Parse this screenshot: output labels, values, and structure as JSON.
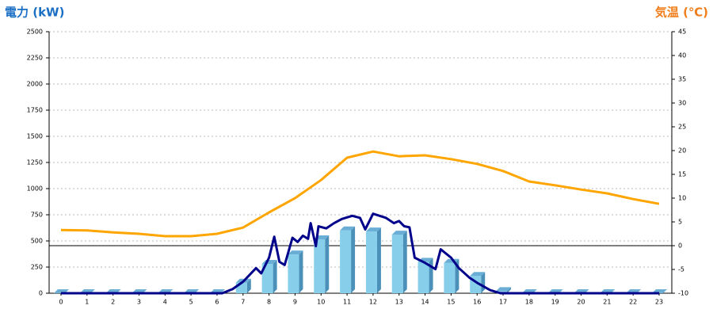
{
  "chart_data": {
    "type": "combo",
    "y_label": "電力 (kW)",
    "y2_label": "気温 (℃)",
    "categories": [
      "0",
      "1",
      "2",
      "3",
      "4",
      "5",
      "6",
      "7",
      "8",
      "9",
      "10",
      "11",
      "12",
      "13",
      "14",
      "15",
      "16",
      "17",
      "18",
      "19",
      "20",
      "21",
      "22",
      "23"
    ],
    "series": [
      {
        "type": "bar",
        "color": "#87ceeb",
        "values": [
          0,
          0,
          0,
          0,
          0,
          0,
          0,
          100,
          280,
          370,
          515,
          600,
          590,
          560,
          300,
          290,
          165,
          20,
          0,
          0,
          0,
          0,
          0,
          0
        ]
      },
      {
        "type": "line",
        "color": "#00008b",
        "x": [
          0,
          6.2,
          6.6,
          7,
          7.5,
          7.7,
          8,
          8.2,
          8.4,
          8.6,
          8.9,
          9.1,
          9.3,
          9.5,
          9.6,
          9.8,
          9.9,
          10.2,
          10.5,
          10.8,
          11.2,
          11.5,
          11.7,
          12,
          12.5,
          12.8,
          13,
          13.2,
          13.4,
          13.6,
          14,
          14.4,
          14.6,
          15,
          15.3,
          15.7,
          16,
          16.5,
          16.9,
          23
        ],
        "values": [
          0,
          0,
          40,
          110,
          240,
          190,
          340,
          540,
          300,
          270,
          530,
          490,
          550,
          520,
          670,
          450,
          640,
          620,
          670,
          710,
          740,
          720,
          610,
          760,
          720,
          670,
          690,
          640,
          630,
          340,
          290,
          230,
          420,
          340,
          240,
          150,
          100,
          30,
          0,
          0
        ]
      },
      {
        "type": "line",
        "axis": "y2",
        "color": "#ffa500",
        "values": [
          3.3,
          3.2,
          2.8,
          2.5,
          2.0,
          2.0,
          2.5,
          3.8,
          7.0,
          10.0,
          13.8,
          18.5,
          19.8,
          18.8,
          19.0,
          18.2,
          17.2,
          15.7,
          13.5,
          12.7,
          11.8,
          11.0,
          9.8,
          8.8
        ]
      }
    ],
    "ylim": [
      0,
      2500
    ],
    "yticks": [
      0,
      250,
      500,
      750,
      1000,
      1250,
      1500,
      1750,
      2000,
      2250,
      2500
    ],
    "y2lim": [
      -10,
      45
    ],
    "y2ticks": [
      -10,
      -5,
      0,
      5,
      10,
      15,
      20,
      25,
      30,
      35,
      40,
      45
    ],
    "grid": true
  }
}
